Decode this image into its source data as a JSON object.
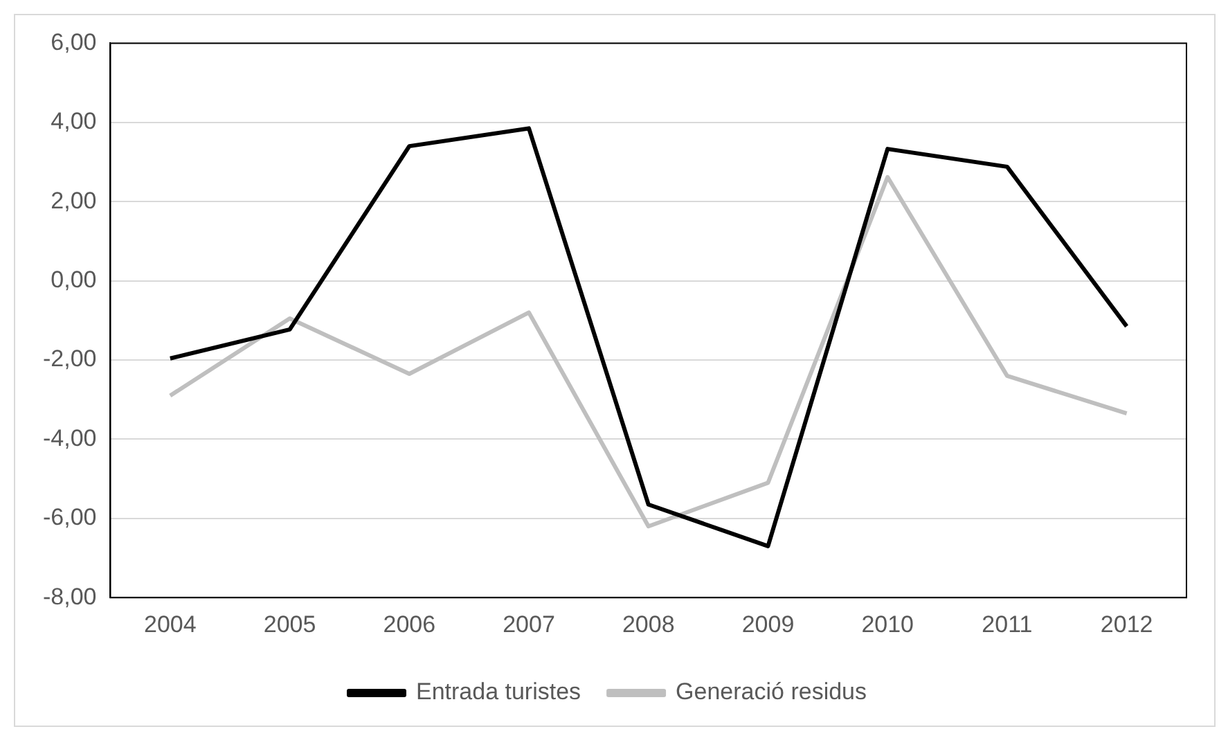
{
  "chart_data": {
    "type": "line",
    "categories": [
      "2004",
      "2005",
      "2006",
      "2007",
      "2008",
      "2009",
      "2010",
      "2011",
      "2012"
    ],
    "series": [
      {
        "name": "Entrada turistes",
        "color": "#000000",
        "values": [
          -1.96,
          -1.23,
          3.4,
          3.85,
          -5.65,
          -6.7,
          3.33,
          2.88,
          -1.15
        ]
      },
      {
        "name": "Generació residus",
        "color": "#bfbfbf",
        "values": [
          -2.9,
          -0.95,
          -2.35,
          -0.8,
          -6.2,
          -5.1,
          2.62,
          -2.4,
          -3.35
        ]
      }
    ],
    "ylim": [
      -8,
      6
    ],
    "yticks": [
      {
        "value": -8,
        "label": "-8,00"
      },
      {
        "value": -6,
        "label": "-6,00"
      },
      {
        "value": -4,
        "label": "-4,00"
      },
      {
        "value": -2,
        "label": "-2,00"
      },
      {
        "value": 0,
        "label": "0,00"
      },
      {
        "value": 2,
        "label": "2,00"
      },
      {
        "value": 4,
        "label": "4,00"
      },
      {
        "value": 6,
        "label": "6,00"
      }
    ],
    "grid": "y",
    "legend": "bottom",
    "marker": "none",
    "line_style": "solid"
  }
}
